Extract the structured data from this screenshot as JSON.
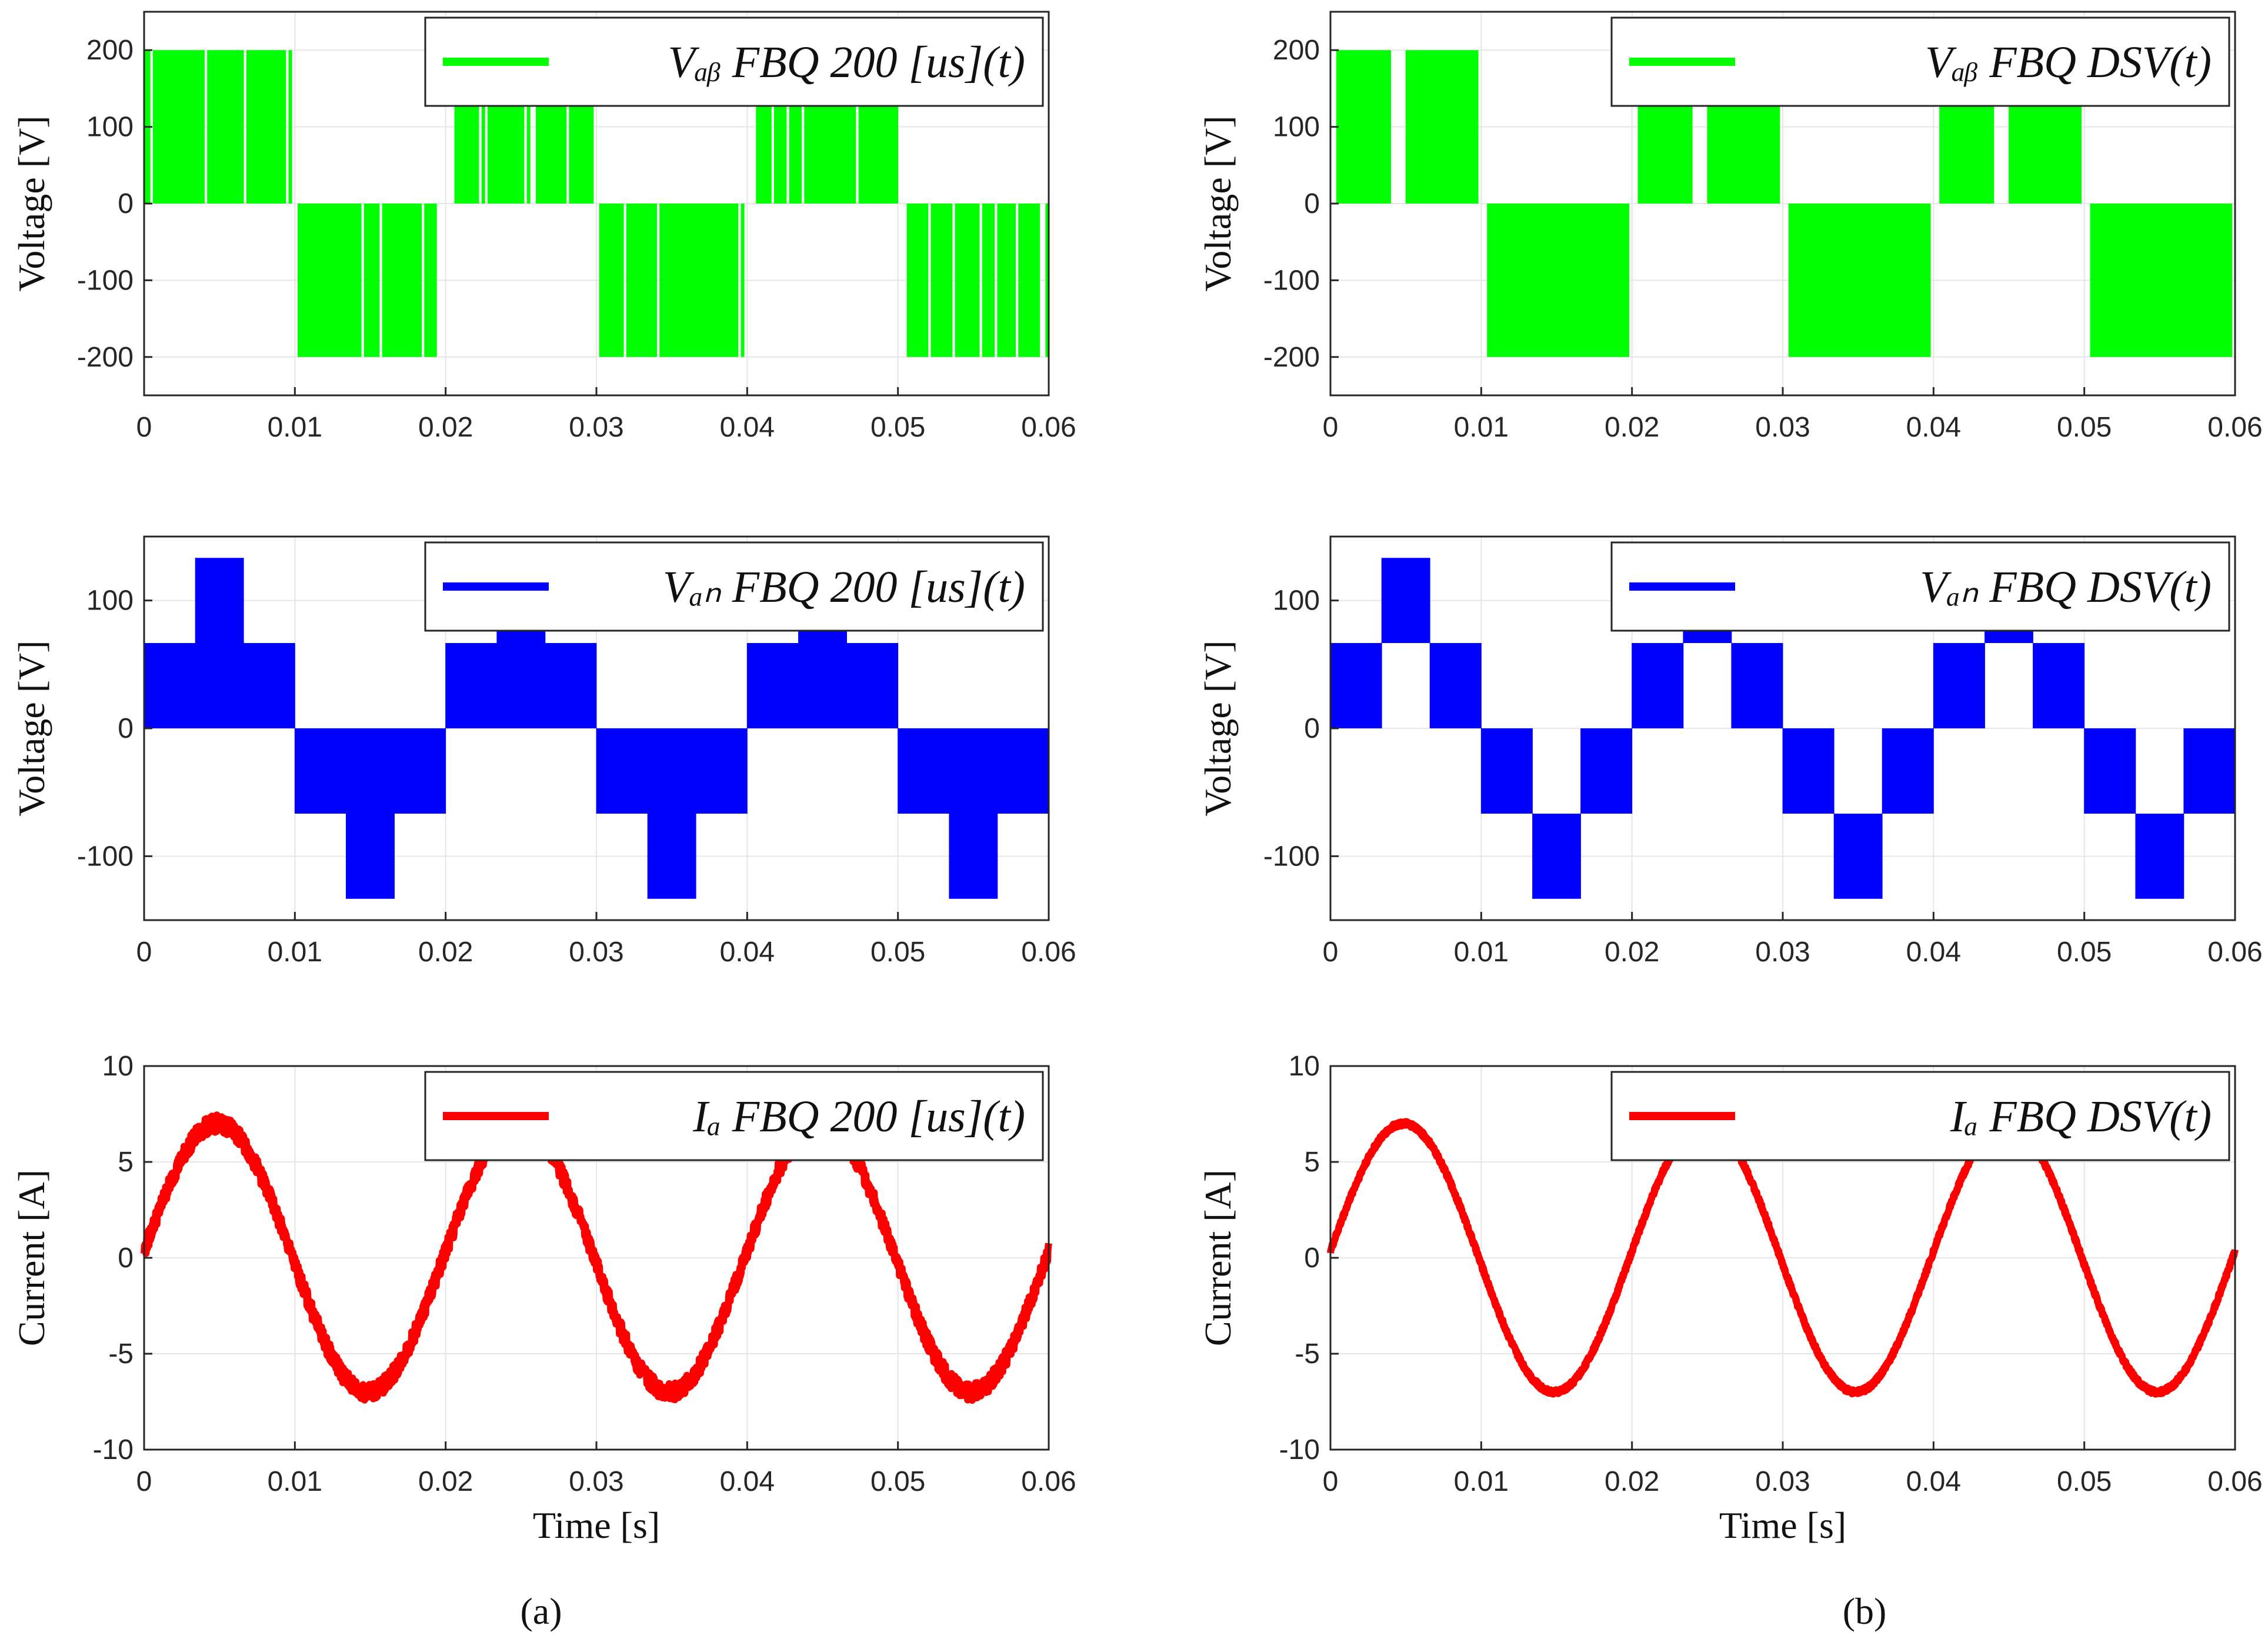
{
  "colors": {
    "green": "#00ff00",
    "blue": "#0000ff",
    "red": "#ff0000"
  },
  "subfigure_labels": [
    "(a)",
    "(b)"
  ],
  "chart_data": [
    {
      "type": "line",
      "id": "a-vab",
      "title": "",
      "xlabel": "",
      "ylabel": "Voltage [V]",
      "xlim": [
        0,
        0.06
      ],
      "ylim": [
        -250,
        250
      ],
      "xticks": [
        0,
        0.01,
        0.02,
        0.03,
        0.04,
        0.05,
        0.06
      ],
      "xtick_labels": [
        "0",
        "0.01",
        "0.02",
        "0.03",
        "0.04",
        "0.05",
        "0.06"
      ],
      "yticks": [
        -200,
        -100,
        0,
        100,
        200
      ],
      "ytick_labels": [
        "-200",
        "-100",
        "0",
        "100",
        "200"
      ],
      "grid": true,
      "legend_position": "top-right",
      "series": [
        {
          "name": "V_ab FBQ 200 [us](t)",
          "legend": "Vₐᵦ FBQ 200 [us](t)",
          "color": "green",
          "waveform": "pwm-line",
          "frequency_hz": 50,
          "amplitude": 200,
          "switching_period_s": 0.0002
        }
      ]
    },
    {
      "type": "line",
      "id": "a-van",
      "title": "",
      "xlabel": "",
      "ylabel": "Voltage [V]",
      "xlim": [
        0,
        0.06
      ],
      "ylim": [
        -150,
        150
      ],
      "xticks": [
        0,
        0.01,
        0.02,
        0.03,
        0.04,
        0.05,
        0.06
      ],
      "xtick_labels": [
        "0",
        "0.01",
        "0.02",
        "0.03",
        "0.04",
        "0.05",
        "0.06"
      ],
      "yticks": [
        -100,
        0,
        100
      ],
      "ytick_labels": [
        "-100",
        "0",
        "100"
      ],
      "grid": true,
      "legend_position": "top-right",
      "series": [
        {
          "name": "V_an FBQ 200 [us](t)",
          "legend": "Vₐₙ FBQ 200 [us](t)",
          "color": "blue",
          "waveform": "pwm-phase",
          "frequency_hz": 50,
          "levels": [
            -133.3,
            -66.7,
            0,
            66.7,
            133.3
          ],
          "switching_period_s": 0.0002
        }
      ]
    },
    {
      "type": "line",
      "id": "a-ia",
      "title": "",
      "xlabel": "Time [s]",
      "ylabel": "Current [A]",
      "xlim": [
        0,
        0.06
      ],
      "ylim": [
        -10,
        10
      ],
      "xticks": [
        0,
        0.01,
        0.02,
        0.03,
        0.04,
        0.05,
        0.06
      ],
      "xtick_labels": [
        "0",
        "0.01",
        "0.02",
        "0.03",
        "0.04",
        "0.05",
        "0.06"
      ],
      "yticks": [
        -10,
        -5,
        0,
        5,
        10
      ],
      "ytick_labels": [
        "-10",
        "-5",
        "0",
        "5",
        "10"
      ],
      "grid": true,
      "legend_position": "top-right",
      "series": [
        {
          "name": "I_a FBQ 200 [us](t)",
          "legend": "Iₐ FBQ 200 [us](t)",
          "color": "red",
          "waveform": "sine",
          "frequency_hz": 50,
          "amplitude": 7,
          "ripple": 0.45
        }
      ]
    },
    {
      "type": "line",
      "id": "b-vab",
      "title": "",
      "xlabel": "",
      "ylabel": "Voltage [V]",
      "xlim": [
        0,
        0.06
      ],
      "ylim": [
        -250,
        250
      ],
      "xticks": [
        0,
        0.01,
        0.02,
        0.03,
        0.04,
        0.05,
        0.06
      ],
      "xtick_labels": [
        "0",
        "0.01",
        "0.02",
        "0.03",
        "0.04",
        "0.05",
        "0.06"
      ],
      "yticks": [
        -200,
        -100,
        0,
        100,
        200
      ],
      "ytick_labels": [
        "-200",
        "-100",
        "0",
        "100",
        "200"
      ],
      "grid": true,
      "legend_position": "top-right",
      "series": [
        {
          "name": "V_ab FBQ DSV(t)",
          "legend": "Vₐᵦ FBQ DSV(t)",
          "color": "green",
          "waveform": "block-line",
          "frequency_hz": 50,
          "amplitude": 200,
          "block_fraction": 0.5
        }
      ]
    },
    {
      "type": "line",
      "id": "b-van",
      "title": "",
      "xlabel": "",
      "ylabel": "Voltage [V]",
      "xlim": [
        0,
        0.06
      ],
      "ylim": [
        -150,
        150
      ],
      "xticks": [
        0,
        0.01,
        0.02,
        0.03,
        0.04,
        0.05,
        0.06
      ],
      "xtick_labels": [
        "0",
        "0.01",
        "0.02",
        "0.03",
        "0.04",
        "0.05",
        "0.06"
      ],
      "yticks": [
        -100,
        0,
        100
      ],
      "ytick_labels": [
        "-100",
        "0",
        "100"
      ],
      "grid": true,
      "legend_position": "top-right",
      "series": [
        {
          "name": "V_an FBQ DSV(t)",
          "legend": "Vₐₙ FBQ DSV(t)",
          "color": "blue",
          "waveform": "six-step-band",
          "frequency_hz": 50,
          "levels": [
            -133.3,
            -66.7,
            0,
            66.7,
            133.3
          ]
        }
      ]
    },
    {
      "type": "line",
      "id": "b-ia",
      "title": "",
      "xlabel": "Time [s]",
      "ylabel": "Current [A]",
      "xlim": [
        0,
        0.06
      ],
      "ylim": [
        -10,
        10
      ],
      "xticks": [
        0,
        0.01,
        0.02,
        0.03,
        0.04,
        0.05,
        0.06
      ],
      "xtick_labels": [
        "0",
        "0.01",
        "0.02",
        "0.03",
        "0.04",
        "0.05",
        "0.06"
      ],
      "yticks": [
        -10,
        -5,
        0,
        5,
        10
      ],
      "ytick_labels": [
        "-10",
        "-5",
        "0",
        "5",
        "10"
      ],
      "grid": true,
      "legend_position": "top-right",
      "series": [
        {
          "name": "I_a FBQ DSV(t)",
          "legend": "Iₐ FBQ DSV(t)",
          "color": "red",
          "waveform": "sine",
          "frequency_hz": 50,
          "amplitude": 7,
          "ripple": 0.12
        }
      ]
    }
  ]
}
